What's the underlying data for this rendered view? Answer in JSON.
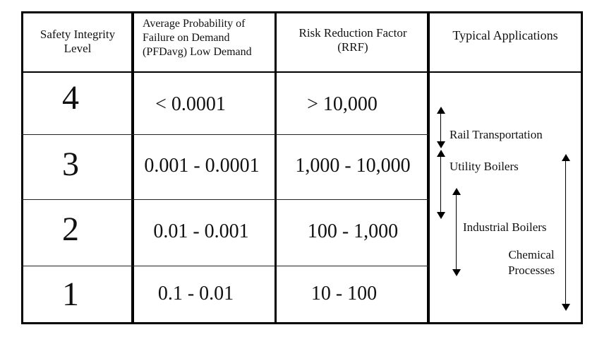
{
  "headers": {
    "sil": "Safety Integrity Level",
    "pfd": "Average Probability of Failure on Demand (PFDavg) Low Demand",
    "rrf": "Risk Reduction Factor (RRF)",
    "apps": "Typical Applications"
  },
  "rows": [
    {
      "sil": "4",
      "pfd": "< 0.0001",
      "rrf": "> 10,000"
    },
    {
      "sil": "3",
      "pfd": "0.001 - 0.0001",
      "rrf": "1,000 - 10,000"
    },
    {
      "sil": "2",
      "pfd": "0.01 - 0.001",
      "rrf": "100 - 1,000"
    },
    {
      "sil": "1",
      "pfd": "0.1 - 0.01",
      "rrf": "10 - 100"
    }
  ],
  "applications": {
    "rail": "Rail Transportation",
    "utility": "Utility Boilers",
    "industrial": "Industrial Boilers",
    "chemical_1": "Chemical",
    "chemical_2": "Processes"
  }
}
